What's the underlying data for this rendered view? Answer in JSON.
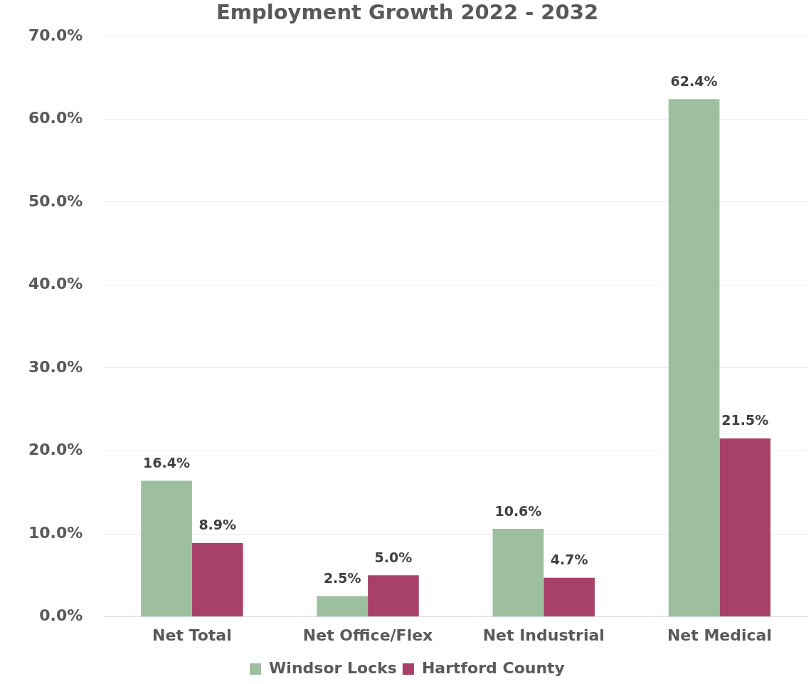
{
  "chart_data": {
    "type": "bar",
    "title": "Employment Growth 2022 - 2032",
    "categories": [
      "Net Total",
      "Net Office/Flex",
      "Net Industrial",
      "Net Medical"
    ],
    "series": [
      {
        "name": "Windsor Locks",
        "color": "#9dbf9e",
        "values": [
          16.4,
          2.5,
          10.6,
          62.4
        ],
        "value_labels": [
          "16.4%",
          "2.5%",
          "10.6%",
          "62.4%"
        ]
      },
      {
        "name": "Hartford County",
        "color": "#a84168",
        "values": [
          8.9,
          5.0,
          4.7,
          21.5
        ],
        "value_labels": [
          "8.9%",
          "5.0%",
          "4.7%",
          "21.5%"
        ]
      }
    ],
    "ylim": [
      0,
      70
    ],
    "yticks": [
      {
        "value": 0,
        "label": "0.0%"
      },
      {
        "value": 10,
        "label": "10.0%"
      },
      {
        "value": 20,
        "label": "20.0%"
      },
      {
        "value": 30,
        "label": "30.0%"
      },
      {
        "value": 40,
        "label": "40.0%"
      },
      {
        "value": 50,
        "label": "50.0%"
      },
      {
        "value": 60,
        "label": "60.0%"
      },
      {
        "value": 70,
        "label": "70.0%"
      }
    ],
    "grid": "y",
    "legend": "bottom"
  }
}
